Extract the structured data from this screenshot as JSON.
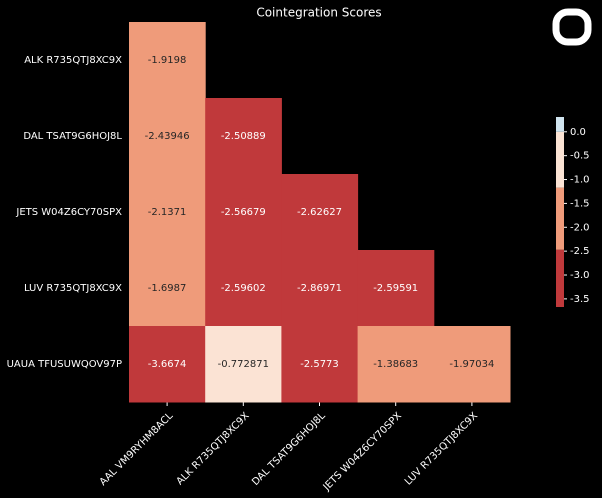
{
  "chart_data": {
    "type": "heatmap",
    "title": "Cointegration Scores",
    "x_categories": [
      "AAL VM9RYHM8ACL",
      "ALK R735QTJ8XC9X",
      "DAL TSAT9G6HOJ8L",
      "JETS W04Z6CY70SPX",
      "LUV R735QTJ8XC9X"
    ],
    "y_categories": [
      "ALK R735QTJ8XC9X",
      "DAL TSAT9G6HOJ8L",
      "JETS W04Z6CY70SPX",
      "LUV R735QTJ8XC9X",
      "UAUA TFUSUWQOV97P"
    ],
    "values": [
      [
        -1.9198,
        null,
        null,
        null,
        null
      ],
      [
        -2.43946,
        -2.50889,
        null,
        null,
        null
      ],
      [
        -2.1371,
        -2.56679,
        -2.62627,
        null,
        null
      ],
      [
        -1.6987,
        -2.59602,
        -2.86971,
        -2.59591,
        null
      ],
      [
        -3.6674,
        -0.772871,
        -2.5773,
        -1.38683,
        -1.97034
      ]
    ],
    "clim": [
      -3.67,
      0.31
    ],
    "color_boundaries": [
      -3.67,
      -2.47,
      -1.17,
      0,
      0.31
    ],
    "colors": [
      "#c0393b",
      "#ef9b7a",
      "#fbe3d4",
      "#d1e5f0"
    ],
    "cticks": [
      {
        "value": 0,
        "label": "0.0"
      },
      -0.5,
      {
        "value": -1,
        "label": "-1.0"
      },
      -1.5,
      {
        "value": -2,
        "label": "-2.0"
      },
      -2.5,
      {
        "value": -3,
        "label": "-3.0"
      },
      -3.5
    ]
  }
}
